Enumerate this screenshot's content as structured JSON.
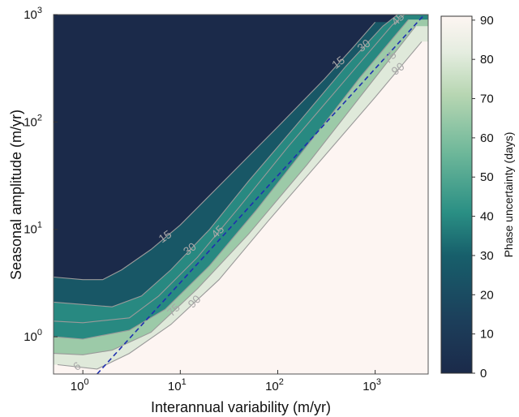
{
  "chart_data": {
    "type": "heatmap",
    "xlabel": "Interannual variability (m/yr)",
    "ylabel": "Seasonal amplitude (m/yr)",
    "xscale": "log",
    "yscale": "log",
    "xlim": [
      0.5,
      3500
    ],
    "ylim": [
      0.45,
      1000
    ],
    "x_ticks": [
      {
        "value": 1,
        "base": "10",
        "exp": "0"
      },
      {
        "value": 10,
        "base": "10",
        "exp": "1"
      },
      {
        "value": 100,
        "base": "10",
        "exp": "2"
      },
      {
        "value": 1000,
        "base": "10",
        "exp": "3"
      }
    ],
    "y_ticks": [
      {
        "value": 1,
        "base": "10",
        "exp": "0"
      },
      {
        "value": 10,
        "base": "10",
        "exp": "1"
      },
      {
        "value": 100,
        "base": "10",
        "exp": "2"
      },
      {
        "value": 1000,
        "base": "10",
        "exp": "3"
      }
    ],
    "colorbar": {
      "label": "Phase uncertainty (days)",
      "range": [
        0,
        91
      ],
      "ticks": [
        "0",
        "10",
        "20",
        "30",
        "40",
        "50",
        "60",
        "70",
        "80",
        "90"
      ],
      "colors": [
        "#1b2a4a",
        "#175f6b",
        "#2a8f84",
        "#6fb89a",
        "#b7d6b2",
        "#e5ede0",
        "#fdf5f2"
      ]
    },
    "reference_line": {
      "style": "dashed",
      "color": "#1f2fb0",
      "x": [
        1.4,
        3200
      ],
      "y": [
        0.45,
        1000
      ]
    },
    "contours": [
      {
        "level": 15,
        "label": "15",
        "points": [
          [
            0.5,
            3.6
          ],
          [
            1,
            3.4
          ],
          [
            1.6,
            3.4
          ],
          [
            2.5,
            4.2
          ],
          [
            5,
            6.5
          ],
          [
            10,
            11
          ],
          [
            30,
            30
          ],
          [
            100,
            90
          ],
          [
            300,
            250
          ],
          [
            600,
            500
          ],
          [
            1000,
            850
          ]
        ]
      },
      {
        "level": 30,
        "label": "30",
        "points": [
          [
            0.5,
            2.1
          ],
          [
            1,
            2.0
          ],
          [
            2,
            1.9
          ],
          [
            4,
            2.4
          ],
          [
            8,
            4.2
          ],
          [
            20,
            10
          ],
          [
            50,
            28
          ],
          [
            150,
            90
          ],
          [
            500,
            330
          ],
          [
            1200,
            780
          ],
          [
            1700,
            1000
          ]
        ]
      },
      {
        "level": 45,
        "label": "45",
        "points": [
          [
            0.5,
            1.4
          ],
          [
            1,
            1.35
          ],
          [
            3,
            1.5
          ],
          [
            6,
            2.4
          ],
          [
            15,
            5.5
          ],
          [
            40,
            16
          ],
          [
            130,
            60
          ],
          [
            500,
            250
          ],
          [
            1500,
            800
          ],
          [
            2000,
            1000
          ]
        ]
      },
      {
        "level": 60,
        "label": "60",
        "points": [
          [
            0.5,
            1.0
          ],
          [
            1,
            0.95
          ],
          [
            3,
            1.15
          ],
          [
            7,
            1.8
          ],
          [
            20,
            4.6
          ],
          [
            60,
            15
          ],
          [
            200,
            60
          ],
          [
            700,
            260
          ],
          [
            2200,
            900
          ]
        ]
      },
      {
        "level": 75,
        "label": "75",
        "points": [
          [
            0.5,
            0.7
          ],
          [
            1,
            0.68
          ],
          [
            2,
            0.75
          ],
          [
            5,
            1.1
          ],
          [
            15,
            2.8
          ],
          [
            50,
            9
          ],
          [
            200,
            40
          ],
          [
            800,
            200
          ],
          [
            2600,
            780
          ]
        ]
      },
      {
        "level": 90,
        "label": "90",
        "points": [
          [
            0.55,
            0.55
          ],
          [
            1.4,
            0.5
          ],
          [
            3,
            0.7
          ],
          [
            8,
            1.3
          ],
          [
            25,
            3.4
          ],
          [
            80,
            12
          ],
          [
            300,
            48
          ],
          [
            1000,
            170
          ],
          [
            3000,
            560
          ]
        ]
      }
    ],
    "contour_labels": [
      "15",
      "30",
      "45",
      "75",
      "90",
      "15",
      "30",
      "45",
      "75",
      "90",
      "6"
    ]
  }
}
